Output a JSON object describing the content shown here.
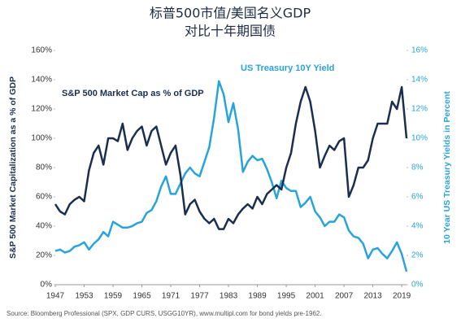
{
  "chart_data": {
    "type": "line",
    "title": "标普500市值/美国名义GDP",
    "subtitle": "对比十年期国债",
    "y_label": "S&P 500 Market Capitalization as a % of GDP",
    "y2_label": "10 Year US Treasury Yields in Percent",
    "source": "Source: Bloomberg Professional (SPX, GDP CURS, USGG10YR), www.multipl.com for bond yields pre-1962.",
    "x": [
      1947,
      1948,
      1949,
      1950,
      1951,
      1952,
      1953,
      1954,
      1955,
      1956,
      1957,
      1958,
      1959,
      1960,
      1961,
      1962,
      1963,
      1964,
      1965,
      1966,
      1967,
      1968,
      1969,
      1970,
      1971,
      1972,
      1973,
      1974,
      1975,
      1976,
      1977,
      1978,
      1979,
      1980,
      1981,
      1982,
      1983,
      1984,
      1985,
      1986,
      1987,
      1988,
      1989,
      1990,
      1991,
      1992,
      1993,
      1994,
      1995,
      1996,
      1997,
      1998,
      1999,
      2000,
      2001,
      2002,
      2003,
      2004,
      2005,
      2006,
      2007,
      2008,
      2009,
      2010,
      2011,
      2012,
      2013,
      2014,
      2015,
      2016,
      2017,
      2018,
      2019,
      2020
    ],
    "series": [
      {
        "name": "S&P 500 Market Cap as % of GDP",
        "color": "#1a2e4f",
        "values": [
          55,
          50,
          48,
          55,
          58,
          60,
          57,
          78,
          90,
          95,
          82,
          100,
          100,
          98,
          110,
          92,
          100,
          105,
          108,
          95,
          105,
          108,
          95,
          82,
          90,
          95,
          75,
          48,
          55,
          58,
          50,
          45,
          42,
          45,
          38,
          38,
          45,
          42,
          48,
          52,
          55,
          52,
          60,
          55,
          62,
          65,
          68,
          65,
          80,
          90,
          110,
          125,
          135,
          125,
          105,
          80,
          88,
          95,
          92,
          98,
          100,
          60,
          68,
          80,
          80,
          85,
          100,
          110,
          110,
          110,
          125,
          120,
          135,
          100
        ]
      },
      {
        "name": "US Treasury 10Y Yield",
        "color": "#29a3db",
        "axis": "y2",
        "values": [
          2.3,
          2.4,
          2.2,
          2.3,
          2.6,
          2.7,
          2.9,
          2.4,
          2.8,
          3.1,
          3.6,
          3.3,
          4.3,
          4.1,
          3.9,
          3.9,
          4.0,
          4.2,
          4.3,
          4.9,
          5.1,
          5.7,
          6.7,
          7.4,
          6.2,
          6.2,
          6.9,
          7.6,
          8.0,
          7.6,
          7.4,
          8.4,
          9.4,
          11.4,
          13.9,
          13.0,
          11.1,
          12.4,
          10.6,
          7.7,
          8.4,
          8.8,
          8.5,
          8.6,
          7.9,
          7.0,
          5.9,
          7.1,
          6.6,
          6.4,
          6.4,
          5.3,
          5.6,
          6.0,
          5.0,
          4.6,
          4.0,
          4.3,
          4.3,
          4.8,
          4.6,
          3.7,
          3.3,
          3.2,
          2.8,
          1.8,
          2.4,
          2.5,
          2.1,
          1.8,
          2.3,
          2.9,
          2.1,
          0.9
        ]
      }
    ],
    "xlim": [
      1947,
      2020
    ],
    "xticks": [
      1947,
      1953,
      1959,
      1965,
      1971,
      1977,
      1983,
      1989,
      1995,
      2001,
      2007,
      2013,
      2019
    ],
    "ylim": [
      0,
      160
    ],
    "yticks": [
      {
        "value": 0,
        "label": "0%"
      },
      {
        "value": 20,
        "label": "20%"
      },
      {
        "value": 40,
        "label": "40%"
      },
      {
        "value": 60,
        "label": "60%"
      },
      {
        "value": 80,
        "label": "80%"
      },
      {
        "value": 100,
        "label": "100%"
      },
      {
        "value": 120,
        "label": "120%"
      },
      {
        "value": 140,
        "label": "140%"
      },
      {
        "value": 160,
        "label": "160%"
      }
    ],
    "y2lim": [
      0,
      16
    ],
    "y2ticks": [
      {
        "value": 0,
        "label": "0%"
      },
      {
        "value": 2,
        "label": "2%"
      },
      {
        "value": 4,
        "label": "4%"
      },
      {
        "value": 6,
        "label": "6%"
      },
      {
        "value": 8,
        "label": "8%"
      },
      {
        "value": 10,
        "label": "10%"
      },
      {
        "value": 12,
        "label": "12%"
      },
      {
        "value": 14,
        "label": "14%"
      },
      {
        "value": 16,
        "label": "16%"
      }
    ],
    "grid": false
  }
}
